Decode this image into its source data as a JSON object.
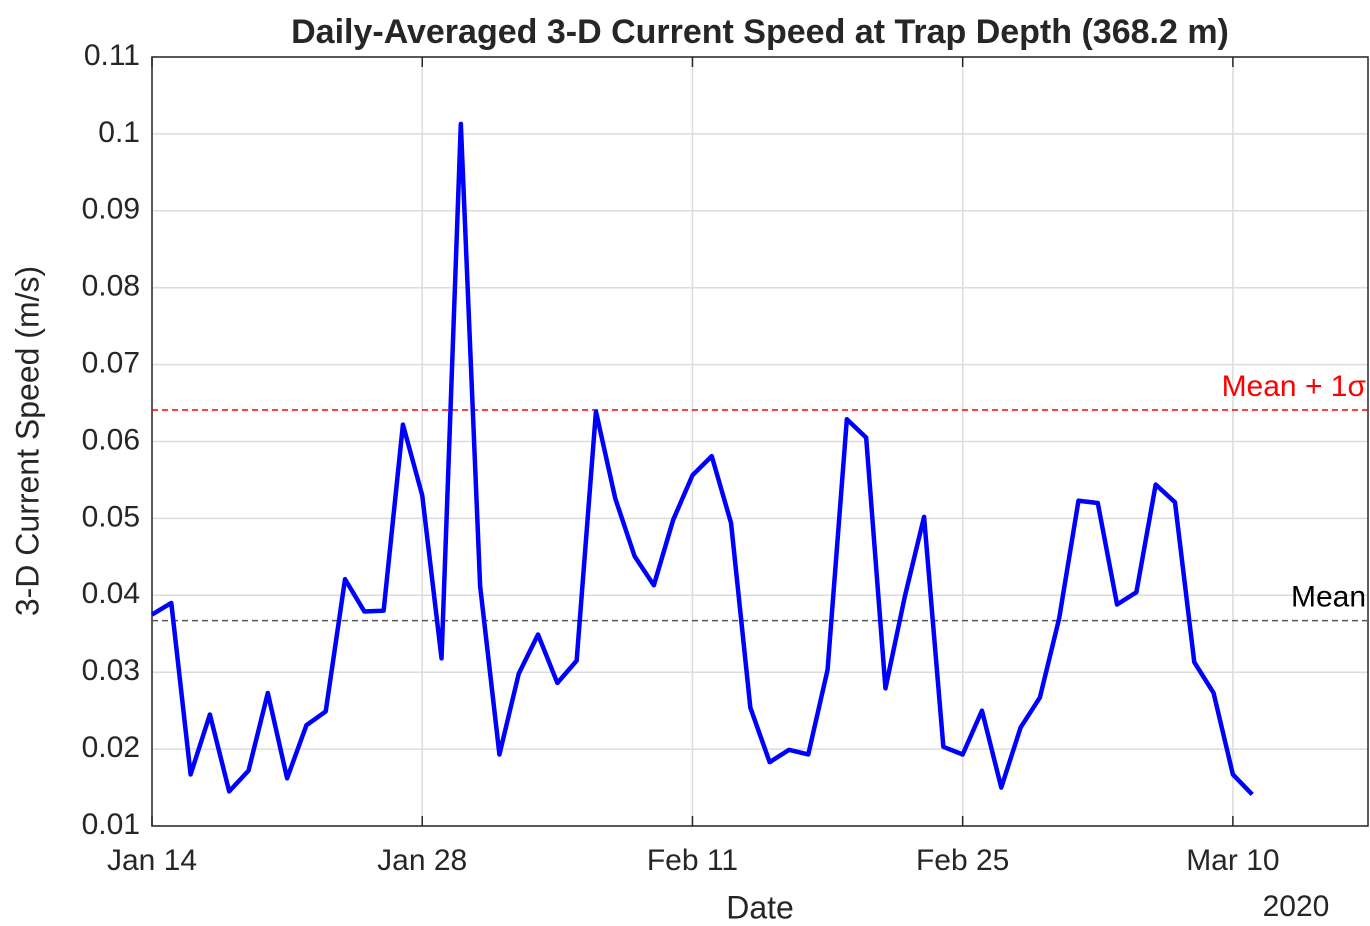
{
  "chart_data": {
    "type": "line",
    "title": "Daily-Averaged 3-D Current Speed at Trap Depth (368.2 m)",
    "x_label": "Date",
    "y_label": "3-D Current Speed (m/s)",
    "x_year_label": "2020",
    "x": [
      "2020-01-14",
      "2020-01-15",
      "2020-01-16",
      "2020-01-17",
      "2020-01-18",
      "2020-01-19",
      "2020-01-20",
      "2020-01-21",
      "2020-01-22",
      "2020-01-23",
      "2020-01-24",
      "2020-01-25",
      "2020-01-26",
      "2020-01-27",
      "2020-01-28",
      "2020-01-29",
      "2020-01-30",
      "2020-01-31",
      "2020-02-01",
      "2020-02-02",
      "2020-02-03",
      "2020-02-04",
      "2020-02-05",
      "2020-02-06",
      "2020-02-07",
      "2020-02-08",
      "2020-02-09",
      "2020-02-10",
      "2020-02-11",
      "2020-02-12",
      "2020-02-13",
      "2020-02-14",
      "2020-02-15",
      "2020-02-16",
      "2020-02-17",
      "2020-02-18",
      "2020-02-19",
      "2020-02-20",
      "2020-02-21",
      "2020-02-22",
      "2020-02-23",
      "2020-02-24",
      "2020-02-25",
      "2020-02-26",
      "2020-02-27",
      "2020-02-28",
      "2020-02-29",
      "2020-03-01",
      "2020-03-02",
      "2020-03-03",
      "2020-03-04",
      "2020-03-05",
      "2020-03-06",
      "2020-03-07",
      "2020-03-08",
      "2020-03-09",
      "2020-03-10",
      "2020-03-11"
    ],
    "series": [
      {
        "name": "3-D Current Speed",
        "color": "#0000ff",
        "values": [
          0.0375,
          0.039,
          0.0167,
          0.0245,
          0.0145,
          0.0172,
          0.0273,
          0.0162,
          0.0231,
          0.0249,
          0.0421,
          0.0379,
          0.038,
          0.0622,
          0.053,
          0.0318,
          0.1013,
          0.0412,
          0.0193,
          0.0298,
          0.0349,
          0.0286,
          0.0315,
          0.0639,
          0.0526,
          0.0451,
          0.0413,
          0.0498,
          0.0556,
          0.0581,
          0.0494,
          0.0254,
          0.0183,
          0.0199,
          0.0193,
          0.0303,
          0.0629,
          0.0605,
          0.0279,
          0.0398,
          0.0502,
          0.0203,
          0.0193,
          0.025,
          0.015,
          0.0228,
          0.0267,
          0.037,
          0.0523,
          0.052,
          0.0388,
          0.0404,
          0.0544,
          0.0521,
          0.0313,
          0.0273,
          0.0167,
          0.0141
        ]
      }
    ],
    "reference_lines": [
      {
        "label": "Mean",
        "value": 0.0367,
        "color": "#555555"
      },
      {
        "label": "Mean + 1σ",
        "value": 0.0641,
        "color": "#ff0000"
      }
    ],
    "xlim": [
      "2020-01-14",
      "2020-03-17"
    ],
    "xticks": [
      {
        "value": "2020-01-14",
        "label": "Jan 14"
      },
      {
        "value": "2020-01-28",
        "label": "Jan 28"
      },
      {
        "value": "2020-02-11",
        "label": "Feb 11"
      },
      {
        "value": "2020-02-25",
        "label": "Feb 25"
      },
      {
        "value": "2020-03-10",
        "label": "Mar 10"
      }
    ],
    "ylim": [
      0.01,
      0.11
    ],
    "yticks": [
      0.01,
      0.02,
      0.03,
      0.04,
      0.05,
      0.06,
      0.07,
      0.08,
      0.09,
      0.1,
      0.11
    ],
    "grid": true
  }
}
